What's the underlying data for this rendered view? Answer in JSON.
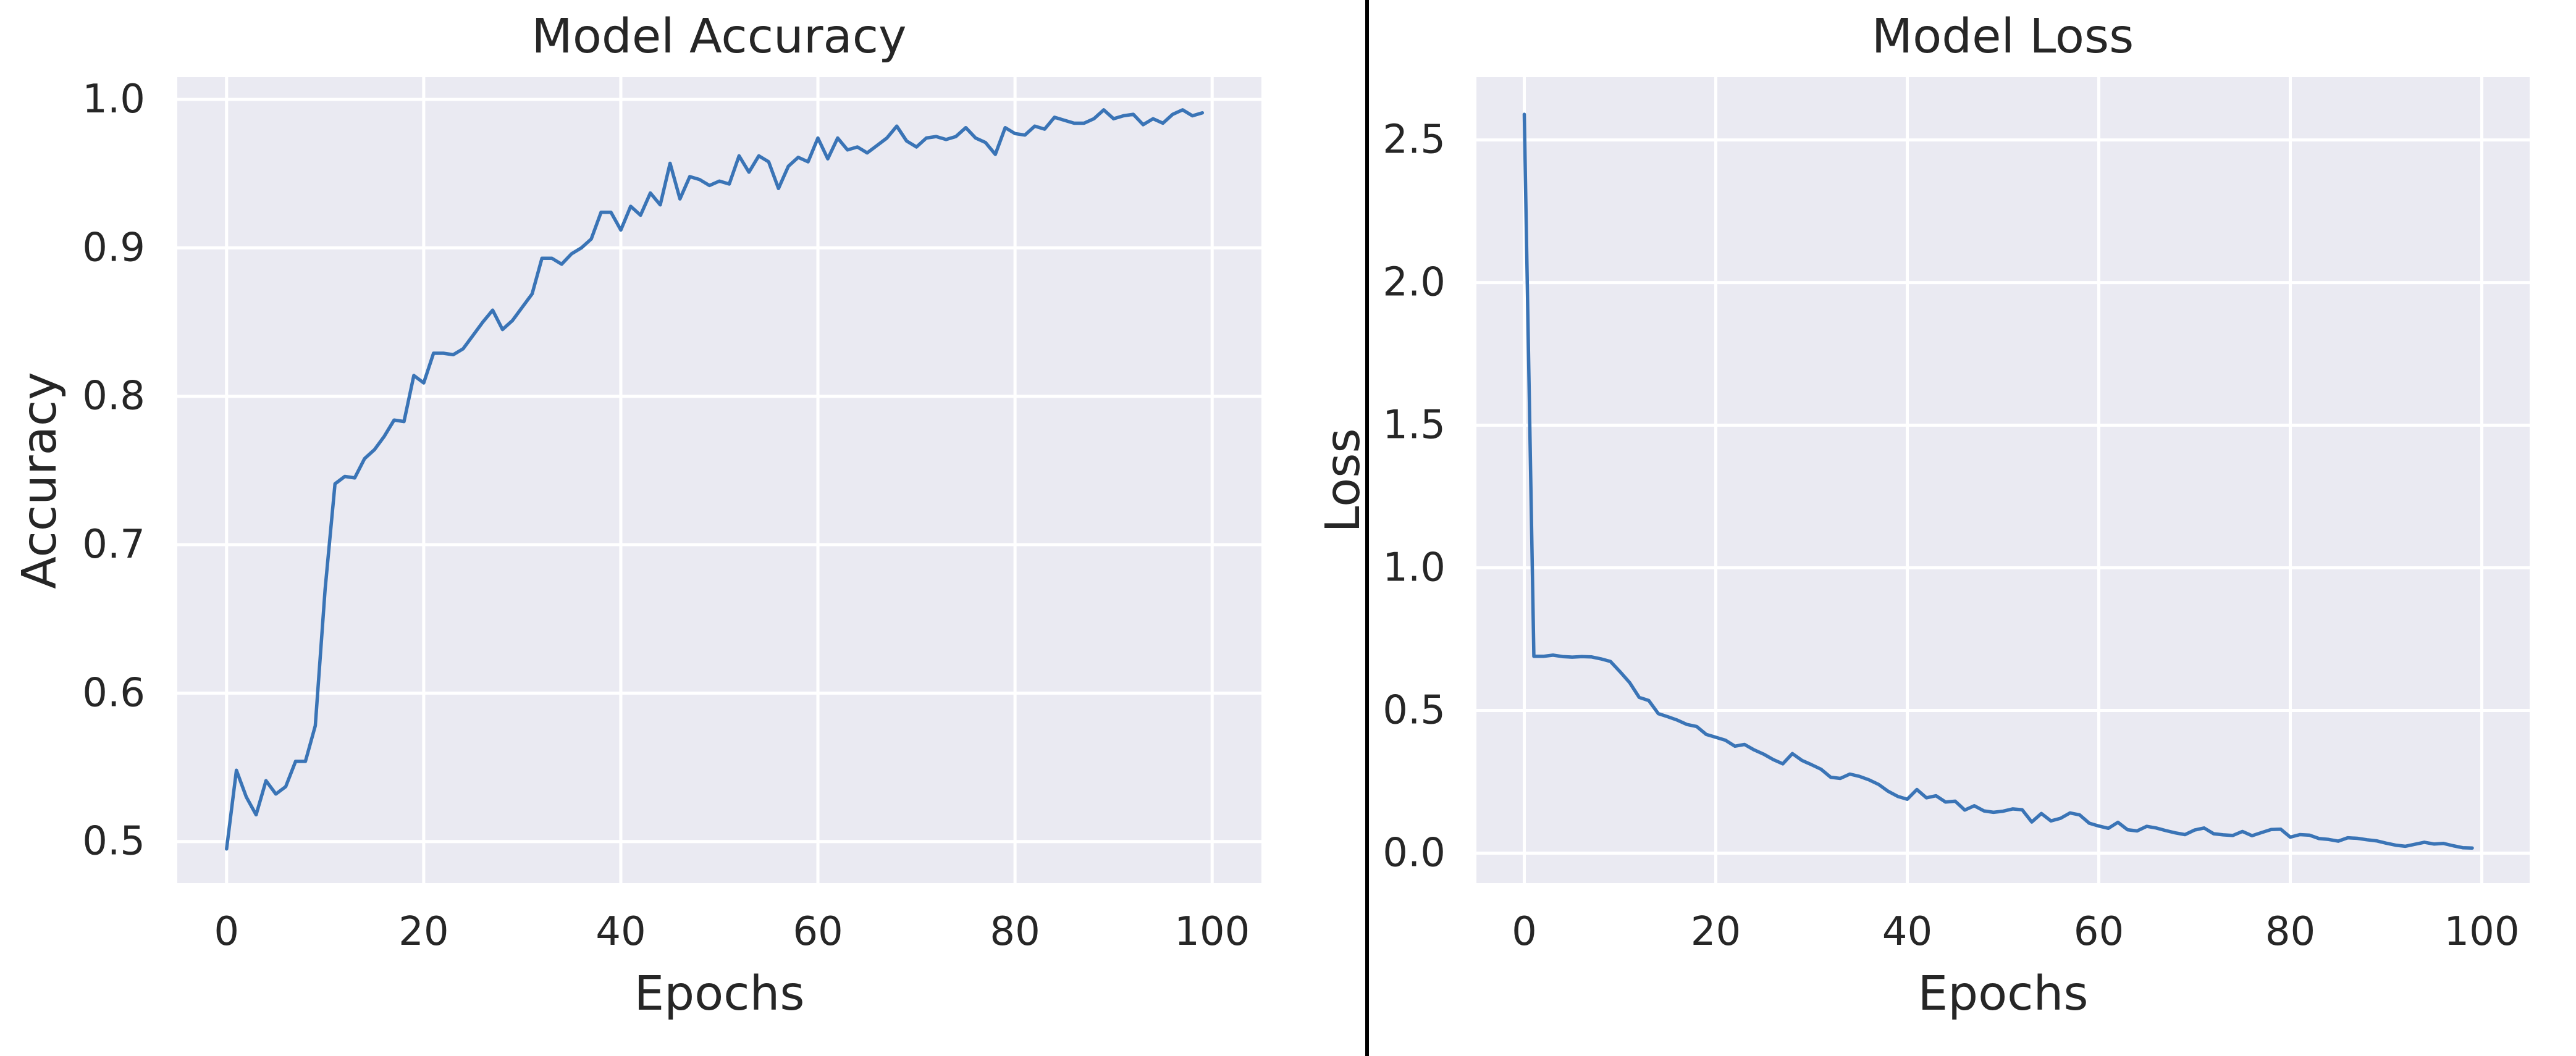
{
  "colors": {
    "plot_background": "#EAEAF2",
    "grid": "#FFFFFF",
    "series": "#3A74B6",
    "text": "#262626",
    "divider": "#000000"
  },
  "chart_data": [
    {
      "type": "line",
      "title": "Model Accuracy",
      "xlabel": "Epochs",
      "ylabel": "Accuracy",
      "xlim": [
        -5,
        105
      ],
      "ylim": [
        0.472,
        1.015
      ],
      "xticks": [
        0,
        20,
        40,
        60,
        80,
        100
      ],
      "xtick_labels": [
        "0",
        "20",
        "40",
        "60",
        "80",
        "100"
      ],
      "yticks": [
        0.5,
        0.6,
        0.7,
        0.8,
        0.9,
        1.0
      ],
      "ytick_labels": [
        "0.5",
        "0.6",
        "0.7",
        "0.8",
        "0.9",
        "1.0"
      ],
      "grid": true,
      "series": [
        {
          "x": [
            0,
            1,
            2,
            3,
            4,
            5,
            6,
            7,
            8,
            9,
            10,
            11,
            12,
            13,
            14,
            15,
            16,
            17,
            18,
            19,
            20,
            21,
            22,
            23,
            24,
            25,
            26,
            27,
            28,
            29,
            30,
            31,
            32,
            33,
            34,
            35,
            36,
            37,
            38,
            39,
            40,
            41,
            42,
            43,
            44,
            45,
            46,
            47,
            48,
            49,
            50,
            51,
            52,
            53,
            54,
            55,
            56,
            57,
            58,
            59,
            60,
            61,
            62,
            63,
            64,
            65,
            66,
            67,
            68,
            69,
            70,
            71,
            72,
            73,
            74,
            75,
            76,
            77,
            78,
            79,
            80,
            81,
            82,
            83,
            84,
            85,
            86,
            87,
            88,
            89,
            90,
            91,
            92,
            93,
            94,
            95,
            96,
            97,
            98,
            99
          ],
          "values": [
            0.495,
            0.548,
            0.53,
            0.518,
            0.541,
            0.532,
            0.537,
            0.554,
            0.554,
            0.578,
            0.67,
            0.741,
            0.746,
            0.745,
            0.758,
            0.764,
            0.773,
            0.784,
            0.783,
            0.814,
            0.809,
            0.829,
            0.829,
            0.828,
            0.832,
            0.841,
            0.85,
            0.858,
            0.845,
            0.851,
            0.86,
            0.869,
            0.893,
            0.893,
            0.889,
            0.896,
            0.9,
            0.906,
            0.924,
            0.924,
            0.912,
            0.928,
            0.922,
            0.937,
            0.929,
            0.957,
            0.933,
            0.948,
            0.946,
            0.942,
            0.945,
            0.943,
            0.962,
            0.951,
            0.962,
            0.958,
            0.94,
            0.955,
            0.961,
            0.958,
            0.974,
            0.96,
            0.974,
            0.966,
            0.968,
            0.964,
            0.969,
            0.974,
            0.982,
            0.972,
            0.968,
            0.974,
            0.975,
            0.973,
            0.975,
            0.981,
            0.974,
            0.971,
            0.963,
            0.981,
            0.977,
            0.976,
            0.982,
            0.98,
            0.988,
            0.986,
            0.984,
            0.984,
            0.987,
            0.993,
            0.987,
            0.989,
            0.99,
            0.983,
            0.987,
            0.984,
            0.99,
            0.993,
            0.989,
            0.991
          ]
        }
      ]
    },
    {
      "type": "line",
      "title": "Model Loss",
      "xlabel": "Epochs",
      "ylabel": "Loss",
      "xlim": [
        -5,
        105
      ],
      "ylim": [
        -0.105,
        2.72
      ],
      "xticks": [
        0,
        20,
        40,
        60,
        80,
        100
      ],
      "xtick_labels": [
        "0",
        "20",
        "40",
        "60",
        "80",
        "100"
      ],
      "yticks": [
        0.0,
        0.5,
        1.0,
        1.5,
        2.0,
        2.5
      ],
      "ytick_labels": [
        "0.0",
        "0.5",
        "1.0",
        "1.5",
        "2.0",
        "2.5"
      ],
      "grid": true,
      "series": [
        {
          "x": [
            0,
            1,
            2,
            3,
            4,
            5,
            6,
            7,
            8,
            9,
            10,
            11,
            12,
            13,
            14,
            15,
            16,
            17,
            18,
            19,
            20,
            21,
            22,
            23,
            24,
            25,
            26,
            27,
            28,
            29,
            30,
            31,
            32,
            33,
            34,
            35,
            36,
            37,
            38,
            39,
            40,
            41,
            42,
            43,
            44,
            45,
            46,
            47,
            48,
            49,
            50,
            51,
            52,
            53,
            54,
            55,
            56,
            57,
            58,
            59,
            60,
            61,
            62,
            63,
            64,
            65,
            66,
            67,
            68,
            69,
            70,
            71,
            72,
            73,
            74,
            75,
            76,
            77,
            78,
            79,
            80,
            81,
            82,
            83,
            84,
            85,
            86,
            87,
            88,
            89,
            90,
            91,
            92,
            93,
            94,
            95,
            96,
            97,
            98,
            99
          ],
          "values": [
            2.59,
            0.69,
            0.69,
            0.694,
            0.689,
            0.687,
            0.689,
            0.688,
            0.681,
            0.672,
            0.636,
            0.598,
            0.546,
            0.535,
            0.489,
            0.478,
            0.466,
            0.451,
            0.444,
            0.416,
            0.406,
            0.396,
            0.375,
            0.381,
            0.362,
            0.347,
            0.328,
            0.313,
            0.349,
            0.325,
            0.31,
            0.294,
            0.266,
            0.262,
            0.277,
            0.269,
            0.257,
            0.241,
            0.217,
            0.199,
            0.189,
            0.223,
            0.194,
            0.201,
            0.179,
            0.182,
            0.151,
            0.166,
            0.148,
            0.143,
            0.147,
            0.155,
            0.152,
            0.109,
            0.139,
            0.113,
            0.122,
            0.141,
            0.134,
            0.105,
            0.095,
            0.087,
            0.108,
            0.082,
            0.078,
            0.094,
            0.088,
            0.079,
            0.071,
            0.065,
            0.081,
            0.088,
            0.068,
            0.064,
            0.062,
            0.076,
            0.061,
            0.072,
            0.083,
            0.084,
            0.056,
            0.065,
            0.063,
            0.051,
            0.048,
            0.042,
            0.054,
            0.052,
            0.047,
            0.043,
            0.035,
            0.028,
            0.024,
            0.031,
            0.038,
            0.032,
            0.034,
            0.026,
            0.019,
            0.018
          ]
        }
      ]
    }
  ]
}
